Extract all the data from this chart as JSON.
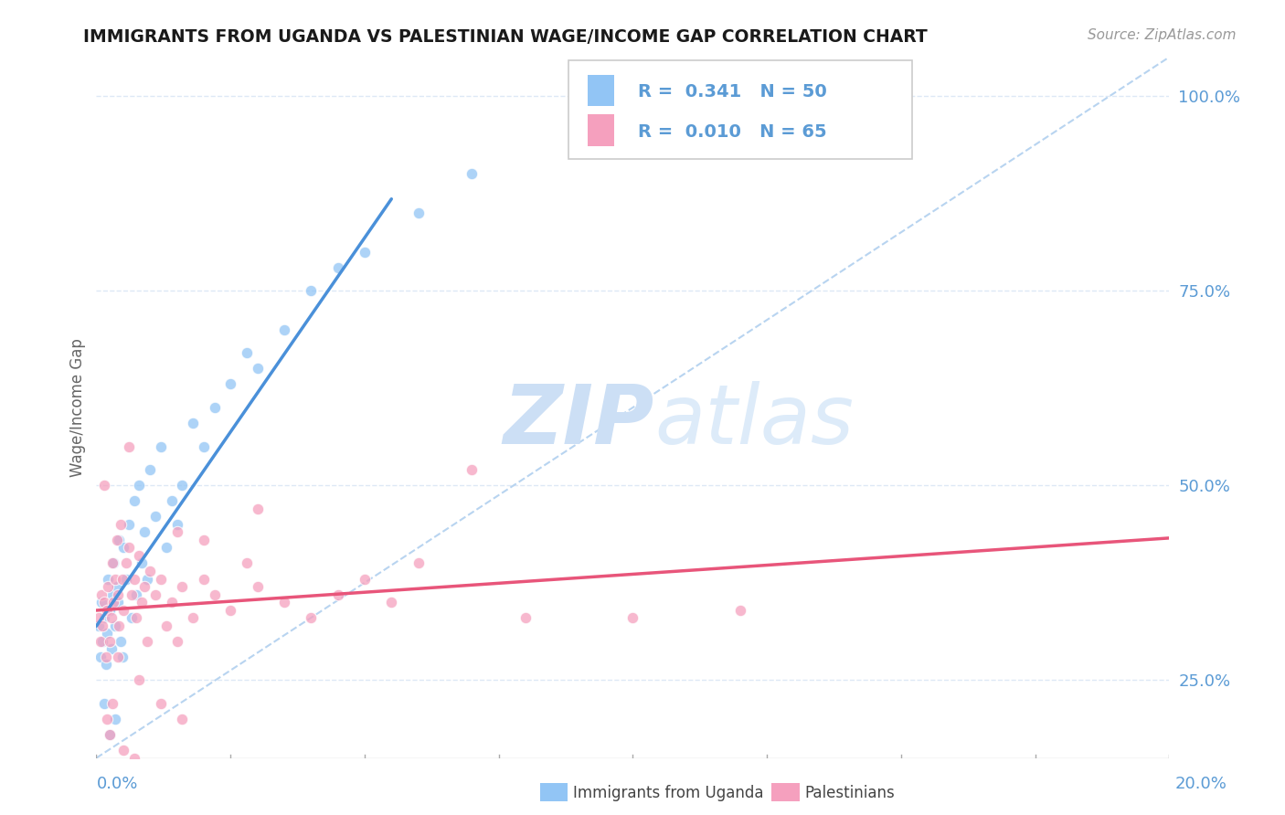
{
  "title": "IMMIGRANTS FROM UGANDA VS PALESTINIAN WAGE/INCOME GAP CORRELATION CHART",
  "source_text": "Source: ZipAtlas.com",
  "ylabel": "Wage/Income Gap",
  "xlim": [
    0.0,
    20.0
  ],
  "ylim": [
    15.0,
    105.0
  ],
  "yticks": [
    25.0,
    50.0,
    75.0,
    100.0
  ],
  "xtick_labels_left": "0.0%",
  "xtick_labels_right": "20.0%",
  "legend_entries": [
    {
      "label": "Immigrants from Uganda",
      "R": "0.341",
      "N": "50",
      "color": "#92c5f5"
    },
    {
      "label": "Palestinians",
      "R": "0.010",
      "N": "65",
      "color": "#f5a0be"
    }
  ],
  "uganda_scatter": [
    [
      0.05,
      32
    ],
    [
      0.08,
      28
    ],
    [
      0.1,
      35
    ],
    [
      0.12,
      30
    ],
    [
      0.15,
      33
    ],
    [
      0.18,
      27
    ],
    [
      0.2,
      31
    ],
    [
      0.22,
      38
    ],
    [
      0.25,
      34
    ],
    [
      0.28,
      29
    ],
    [
      0.3,
      36
    ],
    [
      0.32,
      40
    ],
    [
      0.35,
      32
    ],
    [
      0.38,
      37
    ],
    [
      0.4,
      35
    ],
    [
      0.42,
      43
    ],
    [
      0.45,
      30
    ],
    [
      0.48,
      28
    ],
    [
      0.5,
      42
    ],
    [
      0.55,
      38
    ],
    [
      0.6,
      45
    ],
    [
      0.65,
      33
    ],
    [
      0.7,
      48
    ],
    [
      0.75,
      36
    ],
    [
      0.8,
      50
    ],
    [
      0.85,
      40
    ],
    [
      0.9,
      44
    ],
    [
      0.95,
      38
    ],
    [
      1.0,
      52
    ],
    [
      1.1,
      46
    ],
    [
      1.2,
      55
    ],
    [
      1.3,
      42
    ],
    [
      1.4,
      48
    ],
    [
      1.5,
      45
    ],
    [
      1.6,
      50
    ],
    [
      1.8,
      58
    ],
    [
      2.0,
      55
    ],
    [
      2.2,
      60
    ],
    [
      2.5,
      63
    ],
    [
      2.8,
      67
    ],
    [
      3.0,
      65
    ],
    [
      3.5,
      70
    ],
    [
      4.0,
      75
    ],
    [
      4.5,
      78
    ],
    [
      5.0,
      80
    ],
    [
      0.15,
      22
    ],
    [
      0.25,
      18
    ],
    [
      0.35,
      20
    ],
    [
      6.0,
      85
    ],
    [
      7.0,
      90
    ]
  ],
  "palestinian_scatter": [
    [
      0.05,
      33
    ],
    [
      0.08,
      30
    ],
    [
      0.1,
      36
    ],
    [
      0.12,
      32
    ],
    [
      0.15,
      35
    ],
    [
      0.18,
      28
    ],
    [
      0.2,
      34
    ],
    [
      0.22,
      37
    ],
    [
      0.25,
      30
    ],
    [
      0.28,
      33
    ],
    [
      0.3,
      40
    ],
    [
      0.32,
      35
    ],
    [
      0.35,
      38
    ],
    [
      0.38,
      43
    ],
    [
      0.4,
      36
    ],
    [
      0.42,
      32
    ],
    [
      0.45,
      45
    ],
    [
      0.48,
      38
    ],
    [
      0.5,
      34
    ],
    [
      0.55,
      40
    ],
    [
      0.6,
      42
    ],
    [
      0.65,
      36
    ],
    [
      0.7,
      38
    ],
    [
      0.75,
      33
    ],
    [
      0.8,
      41
    ],
    [
      0.85,
      35
    ],
    [
      0.9,
      37
    ],
    [
      0.95,
      30
    ],
    [
      1.0,
      39
    ],
    [
      1.1,
      36
    ],
    [
      1.2,
      38
    ],
    [
      1.3,
      32
    ],
    [
      1.4,
      35
    ],
    [
      1.5,
      30
    ],
    [
      1.6,
      37
    ],
    [
      1.8,
      33
    ],
    [
      2.0,
      38
    ],
    [
      2.2,
      36
    ],
    [
      2.5,
      34
    ],
    [
      2.8,
      40
    ],
    [
      3.0,
      37
    ],
    [
      3.5,
      35
    ],
    [
      4.0,
      33
    ],
    [
      4.5,
      36
    ],
    [
      5.0,
      38
    ],
    [
      0.2,
      20
    ],
    [
      0.3,
      22
    ],
    [
      5.5,
      35
    ],
    [
      6.0,
      40
    ],
    [
      7.0,
      52
    ],
    [
      0.15,
      50
    ],
    [
      0.6,
      55
    ],
    [
      1.5,
      44
    ],
    [
      2.0,
      43
    ],
    [
      3.0,
      47
    ],
    [
      0.4,
      28
    ],
    [
      0.8,
      25
    ],
    [
      1.2,
      22
    ],
    [
      1.6,
      20
    ],
    [
      8.0,
      33
    ],
    [
      10.0,
      33
    ],
    [
      12.0,
      34
    ],
    [
      0.25,
      18
    ],
    [
      0.5,
      16
    ],
    [
      0.7,
      15
    ]
  ],
  "uganda_line_color": "#4a90d9",
  "palestinian_line_color": "#e8557a",
  "diagonal_color": "#b8d4f0",
  "watermark_color": "#ccdff5",
  "background_color": "#ffffff",
  "grid_color": "#dde8f5",
  "tick_color": "#5b9bd5",
  "title_color": "#1a1a1a",
  "axis_label_color": "#666666"
}
